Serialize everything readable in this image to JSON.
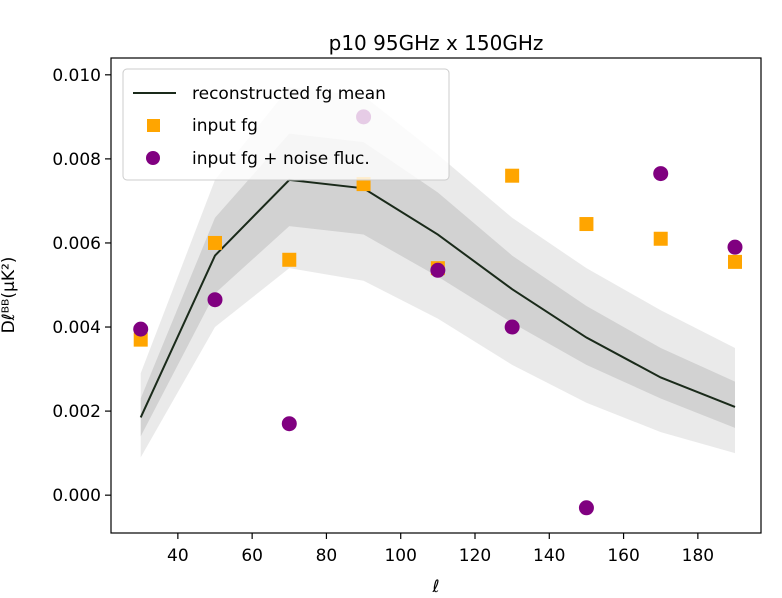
{
  "chart_data": {
    "type": "line",
    "title": "p10 95GHz x 150GHz",
    "xlabel": "ℓ",
    "ylabel": "Dℓᴮᴮ(μK²)",
    "xlim": [
      22,
      197
    ],
    "ylim": [
      -0.0009,
      0.0104
    ],
    "x_ticks": [
      40,
      60,
      80,
      100,
      120,
      140,
      160,
      180
    ],
    "y_ticks": [
      0.0,
      0.002,
      0.004,
      0.006,
      0.008,
      0.01
    ],
    "y_tick_labels": [
      "0.000",
      "0.002",
      "0.004",
      "0.006",
      "0.008",
      "0.010"
    ],
    "grid": false,
    "legend_position": "top-left",
    "x": [
      30,
      50,
      70,
      90,
      110,
      130,
      150,
      170,
      190
    ],
    "series": [
      {
        "name": "reconstructed fg mean",
        "kind": "line",
        "color": "#1a2a1a",
        "values": [
          0.00185,
          0.0057,
          0.0075,
          0.0073,
          0.0062,
          0.0049,
          0.00375,
          0.0028,
          0.0021
        ],
        "band_1sigma": {
          "lower": [
            0.0014,
            0.0048,
            0.0064,
            0.0062,
            0.0052,
            0.0041,
            0.0031,
            0.0023,
            0.0016
          ],
          "upper": [
            0.0023,
            0.0066,
            0.0086,
            0.0084,
            0.0072,
            0.0057,
            0.0045,
            0.0035,
            0.0027
          ]
        },
        "band_2sigma": {
          "lower": [
            0.0009,
            0.004,
            0.0054,
            0.0051,
            0.0042,
            0.0031,
            0.0022,
            0.0015,
            0.001
          ],
          "upper": [
            0.0029,
            0.0075,
            0.0097,
            0.0095,
            0.0081,
            0.0066,
            0.0054,
            0.0044,
            0.0035
          ]
        }
      },
      {
        "name": "input fg",
        "kind": "square",
        "color": "#ffa500",
        "values": [
          0.0037,
          0.006,
          0.0056,
          0.0074,
          0.0054,
          0.0076,
          0.00645,
          0.0061,
          0.00555
        ]
      },
      {
        "name": "input fg + noise fluc.",
        "kind": "circle",
        "color": "#800080",
        "values": [
          0.00395,
          0.00465,
          0.0017,
          0.009,
          0.00535,
          0.004,
          -0.0003,
          0.00765,
          0.0059
        ]
      }
    ]
  }
}
